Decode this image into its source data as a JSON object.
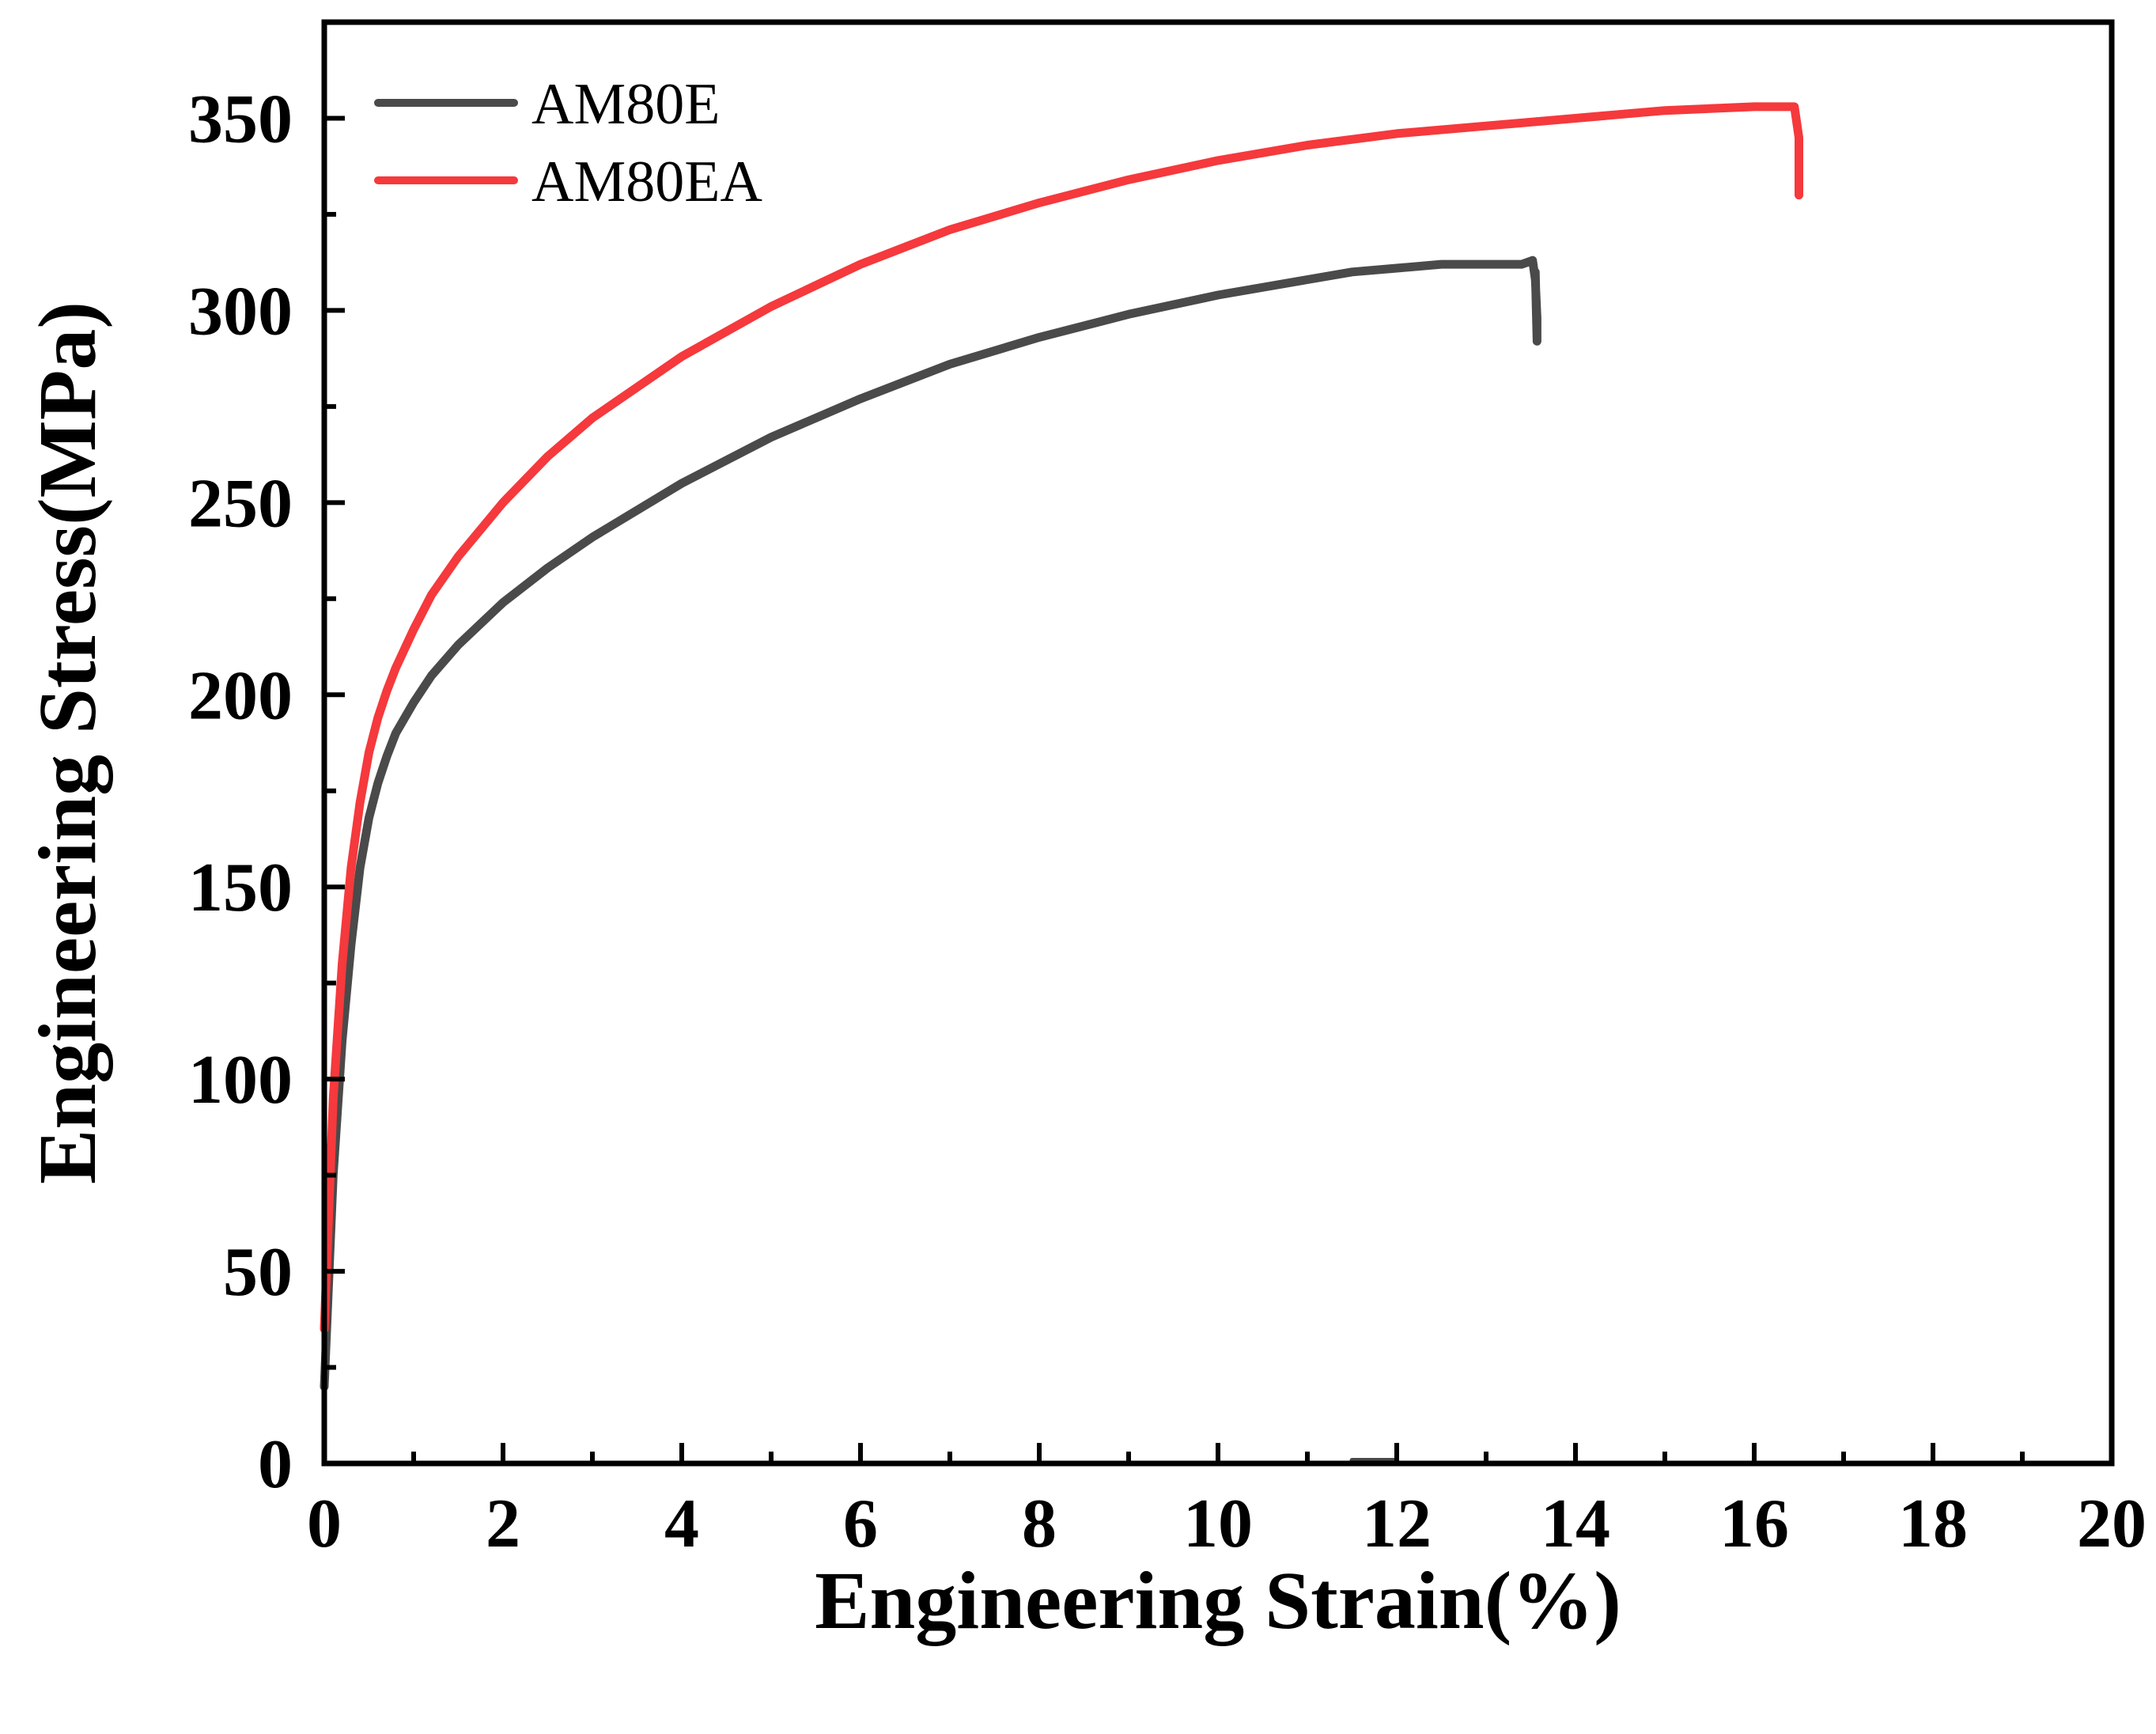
{
  "chart_data": {
    "type": "line",
    "title": "",
    "xlabel": "Engineering Strain(%)",
    "ylabel": "Engineering Stress(MPa)",
    "xlim": [
      0,
      20
    ],
    "ylim": [
      0,
      375
    ],
    "xticks": [
      0,
      2,
      4,
      6,
      8,
      10,
      12,
      14,
      16,
      18,
      20
    ],
    "yticks": [
      0,
      50,
      100,
      150,
      200,
      250,
      300,
      350
    ],
    "grid": false,
    "legend_position": "top-left",
    "series": [
      {
        "name": "AM80E",
        "color": "#4a4a4a",
        "x": [
          0,
          0.1,
          0.2,
          0.3,
          0.4,
          0.5,
          0.6,
          0.7,
          0.8,
          1.0,
          1.2,
          1.5,
          2.0,
          2.5,
          3.0,
          4.0,
          5.0,
          6.0,
          7.0,
          8.0,
          9.0,
          10.0,
          11.0,
          11.5,
          12.0,
          12.5,
          13.0,
          13.4,
          13.52,
          13.55,
          13.57,
          13.57,
          13.55
        ],
        "y": [
          20,
          75,
          110,
          135,
          155,
          168,
          177,
          184,
          190,
          198,
          205,
          213,
          224,
          233,
          241,
          255,
          267,
          277,
          286,
          293,
          299,
          304,
          308,
          310,
          311,
          312,
          312,
          312,
          313,
          308,
          298,
          292,
          310
        ]
      },
      {
        "name": "AM80EA",
        "color": "#f5393c",
        "x": [
          0,
          0.1,
          0.2,
          0.3,
          0.4,
          0.5,
          0.6,
          0.7,
          0.8,
          1.0,
          1.2,
          1.5,
          2.0,
          2.5,
          3.0,
          4.0,
          5.0,
          6.0,
          7.0,
          8.0,
          9.0,
          10.0,
          11.0,
          12.0,
          13.0,
          14.0,
          15.0,
          16.0,
          16.45,
          16.5,
          16.5
        ],
        "y": [
          35,
          95,
          130,
          155,
          172,
          185,
          194,
          201,
          207,
          217,
          226,
          236,
          250,
          262,
          272,
          288,
          301,
          312,
          321,
          328,
          334,
          339,
          343,
          346,
          348,
          350,
          352,
          353,
          353,
          345,
          330
        ]
      }
    ],
    "stray_mark": {
      "x": [
        11.5,
        12.0
      ],
      "y": [
        0,
        0
      ]
    }
  }
}
